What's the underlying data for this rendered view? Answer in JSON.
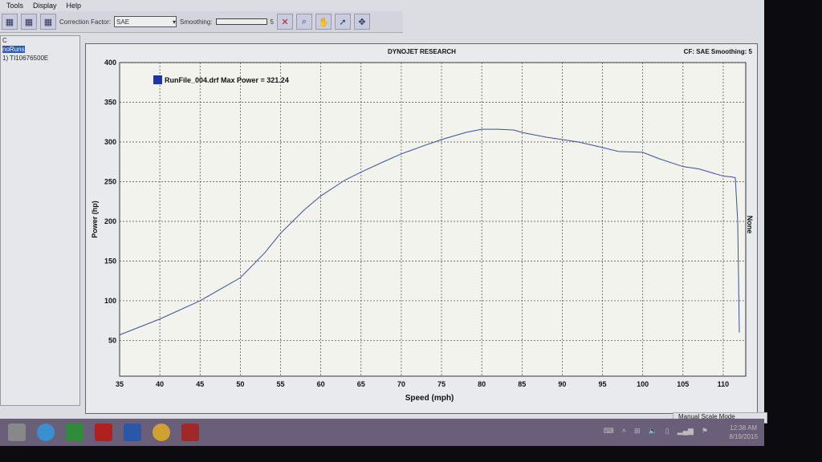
{
  "menu": [
    "Tools",
    "Display",
    "Help"
  ],
  "toolbar": {
    "correction_label": "Correction Factor:",
    "correction_value": "SAE",
    "smoothing_label": "Smoothing:",
    "smoothing_value": "5"
  },
  "left_panel": [
    "C",
    "noRuns",
    "1) TI10676500E"
  ],
  "chart_header": {
    "center": "DYNOJET RESEARCH",
    "right": "CF: SAE  Smoothing: 5"
  },
  "status": "Manual Scale Mode",
  "clock": {
    "time": "12:38 AM",
    "date": "8/19/2015"
  },
  "colors": {
    "series": "#3b4fa0",
    "legend_swatch": "#2233aa",
    "plot_bg": "#f2f3ec"
  },
  "chart_data": {
    "type": "line",
    "xlabel": "Speed (mph)",
    "ylabel": "Power (hp)",
    "right_label": "None",
    "xlim": [
      35,
      112
    ],
    "ylim": [
      5,
      400
    ],
    "xticks": [
      35,
      40,
      45,
      50,
      55,
      60,
      65,
      70,
      75,
      80,
      85,
      90,
      95,
      100,
      105,
      110
    ],
    "yticks": [
      50,
      100,
      150,
      200,
      250,
      300,
      350,
      400
    ],
    "grid": true,
    "legend": "top-left",
    "series": [
      {
        "name": "RunFile_004.drf Max Power = 321.24",
        "x": [
          35,
          40,
          45,
          50,
          53,
          55,
          58,
          60,
          63,
          65,
          68,
          70,
          73,
          75,
          78,
          80,
          82,
          84,
          85,
          88,
          90,
          92,
          95,
          97,
          100,
          102,
          105,
          107,
          110,
          111,
          111.5,
          111.8,
          112
        ],
        "y": [
          57,
          77,
          100,
          129,
          160,
          185,
          215,
          232,
          252,
          262,
          276,
          285,
          296,
          303,
          312,
          316,
          316,
          315,
          312,
          306,
          303,
          300,
          293,
          288,
          287,
          279,
          269,
          266,
          257,
          256,
          255,
          200,
          60
        ]
      }
    ]
  }
}
